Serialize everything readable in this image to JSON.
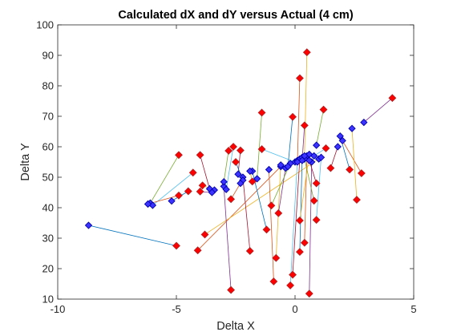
{
  "chart_data": {
    "type": "scatter",
    "title": "Calculated dX and dY versus Actual (4 cm)",
    "xlabel": "Delta X",
    "ylabel": "Delta Y",
    "xlim": [
      -10,
      5
    ],
    "ylim": [
      10,
      100
    ],
    "xticks": [
      "-10",
      "-5",
      "0",
      "5"
    ],
    "yticks": [
      "10",
      "20",
      "30",
      "40",
      "50",
      "60",
      "70",
      "80",
      "90",
      "100"
    ],
    "grid": false,
    "legend": "none",
    "markers": {
      "actual": {
        "shape": "diamond",
        "fill": "#ff0000",
        "edge": "#b22222"
      },
      "calculated": {
        "shape": "diamond",
        "fill": "#3d33ff",
        "edge": "#0000aa"
      }
    },
    "line_colors": [
      "#0072bd",
      "#d95319",
      "#edb120",
      "#7e2f8e",
      "#77ac30",
      "#4dbeee",
      "#a2142f"
    ],
    "pairs": [
      {
        "actual": [
          -5.0,
          27.5
        ],
        "calc": [
          -8.7,
          34.2
        ]
      },
      {
        "actual": [
          -4.1,
          26.0
        ],
        "calc": [
          -0.6,
          53.5
        ]
      },
      {
        "actual": [
          -3.8,
          31.2
        ],
        "calc": [
          1.0,
          56.0
        ]
      },
      {
        "actual": [
          -2.7,
          13.0
        ],
        "calc": [
          -3.0,
          47.0
        ]
      },
      {
        "actual": [
          -1.4,
          71.2
        ],
        "calc": [
          -1.6,
          49.5
        ]
      },
      {
        "actual": [
          -1.4,
          59.2
        ],
        "calc": [
          0.0,
          55.0
        ]
      },
      {
        "actual": [
          -1.9,
          25.8
        ],
        "calc": [
          -2.2,
          50.0
        ]
      },
      {
        "actual": [
          -1.2,
          32.8
        ],
        "calc": [
          -1.8,
          52.0
        ]
      },
      {
        "actual": [
          -0.9,
          15.8
        ],
        "calc": [
          -1.1,
          52.5
        ]
      },
      {
        "actual": [
          -0.8,
          23.5
        ],
        "calc": [
          -0.6,
          54.0
        ]
      },
      {
        "actual": [
          -0.7,
          38.2
        ],
        "calc": [
          -0.4,
          53.0
        ]
      },
      {
        "actual": [
          -1.0,
          40.7
        ],
        "calc": [
          -0.2,
          54.5
        ]
      },
      {
        "actual": [
          -0.2,
          14.5
        ],
        "calc": [
          0.1,
          55.5
        ]
      },
      {
        "actual": [
          -0.1,
          18.0
        ],
        "calc": [
          0.2,
          56.0
        ]
      },
      {
        "actual": [
          0.2,
          25.5
        ],
        "calc": [
          0.3,
          56.5
        ]
      },
      {
        "actual": [
          0.4,
          28.5
        ],
        "calc": [
          0.5,
          57.0
        ]
      },
      {
        "actual": [
          0.2,
          35.8
        ],
        "calc": [
          0.6,
          57.5
        ]
      },
      {
        "actual": [
          0.6,
          11.8
        ],
        "calc": [
          0.7,
          55.0
        ]
      },
      {
        "actual": [
          0.8,
          42.3
        ],
        "calc": [
          0.4,
          56.0
        ]
      },
      {
        "actual": [
          0.9,
          36.0
        ],
        "calc": [
          1.1,
          56.5
        ]
      },
      {
        "actual": [
          0.9,
          48.0
        ],
        "calc": [
          0.6,
          55.5
        ]
      },
      {
        "actual": [
          -0.1,
          69.8
        ],
        "calc": [
          -0.3,
          53.5
        ]
      },
      {
        "actual": [
          0.2,
          82.5
        ],
        "calc": [
          0.1,
          55.0
        ]
      },
      {
        "actual": [
          0.5,
          91.0
        ],
        "calc": [
          0.4,
          57.0
        ]
      },
      {
        "actual": [
          0.4,
          67.0
        ],
        "calc": [
          0.3,
          55.5
        ]
      },
      {
        "actual": [
          1.2,
          72.2
        ],
        "calc": [
          0.9,
          60.5
        ]
      },
      {
        "actual": [
          1.3,
          59.5
        ],
        "calc": [
          0.8,
          57.0
        ]
      },
      {
        "actual": [
          1.5,
          53.0
        ],
        "calc": [
          1.8,
          60.0
        ]
      },
      {
        "actual": [
          2.3,
          52.5
        ],
        "calc": [
          1.9,
          63.5
        ]
      },
      {
        "actual": [
          2.8,
          51.3
        ],
        "calc": [
          2.0,
          62.0
        ]
      },
      {
        "actual": [
          2.6,
          42.6
        ],
        "calc": [
          2.4,
          66.0
        ]
      },
      {
        "actual": [
          4.1,
          76.0
        ],
        "calc": [
          2.9,
          68.0
        ]
      },
      {
        "actual": [
          -4.9,
          57.3
        ],
        "calc": [
          -6.1,
          41.5
        ]
      },
      {
        "actual": [
          -4.3,
          51.5
        ],
        "calc": [
          -6.0,
          40.8
        ]
      },
      {
        "actual": [
          -4.0,
          57.3
        ],
        "calc": [
          -3.6,
          46.2
        ]
      },
      {
        "actual": [
          -4.5,
          45.4
        ],
        "calc": [
          -5.2,
          42.2
        ]
      },
      {
        "actual": [
          -4.9,
          44.0
        ],
        "calc": [
          -6.2,
          41.2
        ]
      },
      {
        "actual": [
          -3.9,
          47.3
        ],
        "calc": [
          -3.4,
          45.8
        ]
      },
      {
        "actual": [
          -4.0,
          45.3
        ],
        "calc": [
          -3.5,
          45.0
        ]
      },
      {
        "actual": [
          -2.8,
          58.7
        ],
        "calc": [
          -3.0,
          48.5
        ]
      },
      {
        "actual": [
          -2.6,
          60.0
        ],
        "calc": [
          -2.9,
          46.0
        ]
      },
      {
        "actual": [
          -2.3,
          58.8
        ],
        "calc": [
          -2.4,
          51.0
        ]
      },
      {
        "actual": [
          -2.5,
          55.0
        ],
        "calc": [
          -2.2,
          49.0
        ]
      },
      {
        "actual": [
          -2.7,
          42.8
        ],
        "calc": [
          -2.3,
          48.0
        ]
      },
      {
        "actual": [
          -1.8,
          48.6
        ],
        "calc": [
          -1.9,
          52.0
        ]
      }
    ]
  }
}
